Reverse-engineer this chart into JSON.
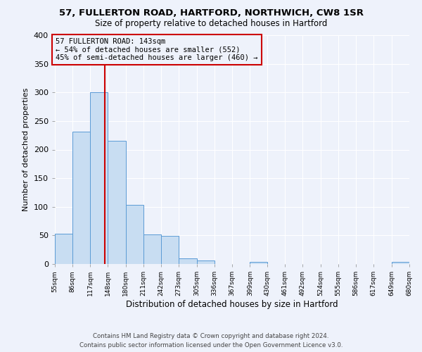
{
  "title1": "57, FULLERTON ROAD, HARTFORD, NORTHWICH, CW8 1SR",
  "title2": "Size of property relative to detached houses in Hartford",
  "xlabel": "Distribution of detached houses by size in Hartford",
  "ylabel": "Number of detached properties",
  "bin_edges": [
    55,
    86,
    117,
    148,
    180,
    211,
    242,
    273,
    305,
    336,
    367,
    399,
    430,
    461,
    492,
    524,
    555,
    586,
    617,
    649,
    680
  ],
  "bar_heights": [
    53,
    232,
    300,
    216,
    103,
    52,
    49,
    10,
    6,
    0,
    0,
    4,
    0,
    0,
    0,
    0,
    0,
    0,
    0,
    4
  ],
  "bar_color": "#c8ddf2",
  "bar_edge_color": "#5b9bd5",
  "property_size": 143,
  "vline_color": "#cc0000",
  "annotation_text": "57 FULLERTON ROAD: 143sqm\n← 54% of detached houses are smaller (552)\n45% of semi-detached houses are larger (460) →",
  "annotation_box_edge": "#cc0000",
  "ylim": [
    0,
    400
  ],
  "yticks": [
    0,
    50,
    100,
    150,
    200,
    250,
    300,
    350,
    400
  ],
  "footer_line1": "Contains HM Land Registry data © Crown copyright and database right 2024.",
  "footer_line2": "Contains public sector information licensed under the Open Government Licence v3.0.",
  "background_color": "#eef2fb",
  "grid_color": "#ffffff"
}
